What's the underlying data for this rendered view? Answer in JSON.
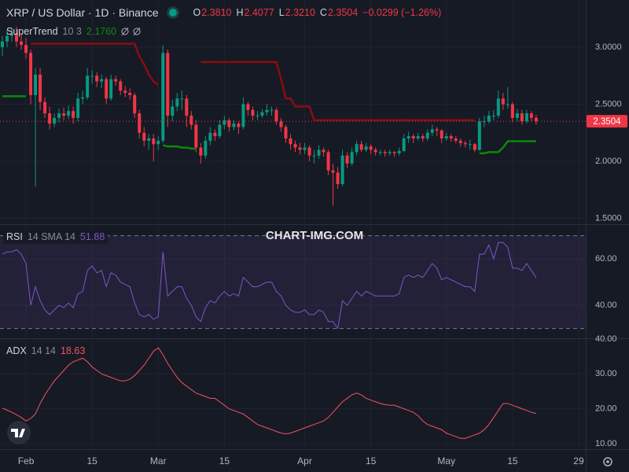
{
  "chart_data": {
    "type": "candlestick",
    "header": {
      "symbol": "XRP / US Dollar · 1D · Binance",
      "ohlc_keys": [
        "O",
        "H",
        "L",
        "C"
      ],
      "ohlc_values": [
        "2.3810",
        "2.4077",
        "2.3210",
        "2.3504"
      ],
      "change": "−0.0299 (−1.26%)"
    },
    "watermark": "CHART-IMG.COM",
    "up_color": "#089981",
    "down_color": "#f23645",
    "xlim": [
      -0.5,
      123.5
    ],
    "xticks": [
      {
        "value": 5,
        "label": "Feb"
      },
      {
        "value": 19,
        "label": "15"
      },
      {
        "value": 33,
        "label": "Mar"
      },
      {
        "value": 47,
        "label": "15"
      },
      {
        "value": 64,
        "label": "Apr"
      },
      {
        "value": 78,
        "label": "15"
      },
      {
        "value": 94,
        "label": "May"
      },
      {
        "value": 108,
        "label": "15"
      },
      {
        "value": 122,
        "label": "29"
      }
    ],
    "ylim": [
      1.448,
      3.414
    ],
    "yticks": [
      {
        "value": 1.5,
        "label": "1.5000"
      },
      {
        "value": 2.0,
        "label": "2.0000"
      },
      {
        "value": 2.5,
        "label": "2.5000"
      },
      {
        "value": 3.0,
        "label": "3.0000"
      }
    ],
    "grid": true,
    "ohlc": [
      [
        3.0,
        3.1,
        2.92,
        3.05
      ],
      [
        3.05,
        3.15,
        3.0,
        3.1
      ],
      [
        3.1,
        3.17,
        3.05,
        3.12
      ],
      [
        3.12,
        3.18,
        3.0,
        3.05
      ],
      [
        3.05,
        3.12,
        2.98,
        3.02
      ],
      [
        3.02,
        3.08,
        2.9,
        2.95
      ],
      [
        2.95,
        2.98,
        2.5,
        2.58
      ],
      [
        2.58,
        2.82,
        1.78,
        2.76
      ],
      [
        2.76,
        2.82,
        2.45,
        2.52
      ],
      [
        2.52,
        2.56,
        2.38,
        2.42
      ],
      [
        2.42,
        2.48,
        2.28,
        2.33
      ],
      [
        2.33,
        2.42,
        2.3,
        2.38
      ],
      [
        2.38,
        2.46,
        2.34,
        2.42
      ],
      [
        2.42,
        2.47,
        2.36,
        2.4
      ],
      [
        2.4,
        2.49,
        2.37,
        2.44
      ],
      [
        2.44,
        2.48,
        2.33,
        2.38
      ],
      [
        2.38,
        2.6,
        2.35,
        2.55
      ],
      [
        2.55,
        2.62,
        2.5,
        2.56
      ],
      [
        2.56,
        2.82,
        2.54,
        2.75
      ],
      [
        2.75,
        2.8,
        2.68,
        2.75
      ],
      [
        2.75,
        2.78,
        2.65,
        2.7
      ],
      [
        2.7,
        2.76,
        2.64,
        2.72
      ],
      [
        2.72,
        2.74,
        2.5,
        2.55
      ],
      [
        2.55,
        2.76,
        2.53,
        2.72
      ],
      [
        2.72,
        2.75,
        2.66,
        2.7
      ],
      [
        2.7,
        2.72,
        2.58,
        2.62
      ],
      [
        2.62,
        2.66,
        2.56,
        2.6
      ],
      [
        2.6,
        2.64,
        2.54,
        2.58
      ],
      [
        2.58,
        2.6,
        2.38,
        2.42
      ],
      [
        2.42,
        2.45,
        2.2,
        2.25
      ],
      [
        2.25,
        2.3,
        2.13,
        2.18
      ],
      [
        2.18,
        2.24,
        2.1,
        2.2
      ],
      [
        2.2,
        2.24,
        2.0,
        2.15
      ],
      [
        2.15,
        2.22,
        2.1,
        2.18
      ],
      [
        2.18,
        3.02,
        2.16,
        2.95
      ],
      [
        2.95,
        2.98,
        2.3,
        2.4
      ],
      [
        2.4,
        2.54,
        2.35,
        2.48
      ],
      [
        2.48,
        2.6,
        2.44,
        2.55
      ],
      [
        2.55,
        2.62,
        2.45,
        2.55
      ],
      [
        2.55,
        2.58,
        2.3,
        2.4
      ],
      [
        2.4,
        2.44,
        2.28,
        2.32
      ],
      [
        2.32,
        2.36,
        2.08,
        2.12
      ],
      [
        2.12,
        2.16,
        1.98,
        2.05
      ],
      [
        2.05,
        2.22,
        2.02,
        2.18
      ],
      [
        2.18,
        2.3,
        2.14,
        2.25
      ],
      [
        2.25,
        2.28,
        2.18,
        2.22
      ],
      [
        2.22,
        2.36,
        2.2,
        2.32
      ],
      [
        2.32,
        2.4,
        2.28,
        2.36
      ],
      [
        2.36,
        2.38,
        2.26,
        2.3
      ],
      [
        2.3,
        2.36,
        2.27,
        2.33
      ],
      [
        2.33,
        2.35,
        2.24,
        2.3
      ],
      [
        2.3,
        2.56,
        2.28,
        2.5
      ],
      [
        2.5,
        2.52,
        2.4,
        2.45
      ],
      [
        2.45,
        2.48,
        2.36,
        2.4
      ],
      [
        2.4,
        2.44,
        2.36,
        2.4
      ],
      [
        2.4,
        2.46,
        2.38,
        2.43
      ],
      [
        2.43,
        2.5,
        2.4,
        2.45
      ],
      [
        2.45,
        2.48,
        2.4,
        2.45
      ],
      [
        2.45,
        2.47,
        2.32,
        2.35
      ],
      [
        2.35,
        2.38,
        2.26,
        2.3
      ],
      [
        2.3,
        2.32,
        2.16,
        2.2
      ],
      [
        2.2,
        2.24,
        2.1,
        2.15
      ],
      [
        2.15,
        2.18,
        2.08,
        2.12
      ],
      [
        2.12,
        2.16,
        2.06,
        2.1
      ],
      [
        2.1,
        2.16,
        2.06,
        2.12
      ],
      [
        2.12,
        2.14,
        2.0,
        2.05
      ],
      [
        2.05,
        2.1,
        1.98,
        2.05
      ],
      [
        2.05,
        2.14,
        2.02,
        2.1
      ],
      [
        2.1,
        2.12,
        2.04,
        2.08
      ],
      [
        2.08,
        2.1,
        1.88,
        1.92
      ],
      [
        1.92,
        1.98,
        1.61,
        1.9
      ],
      [
        1.9,
        1.95,
        1.76,
        1.8
      ],
      [
        1.8,
        2.1,
        1.78,
        2.05
      ],
      [
        2.05,
        2.08,
        1.94,
        1.98
      ],
      [
        1.98,
        2.12,
        1.96,
        2.08
      ],
      [
        2.08,
        2.18,
        2.05,
        2.15
      ],
      [
        2.15,
        2.18,
        2.08,
        2.1
      ],
      [
        2.1,
        2.16,
        2.08,
        2.13
      ],
      [
        2.13,
        2.15,
        2.06,
        2.1
      ],
      [
        2.1,
        2.12,
        2.05,
        2.08
      ],
      [
        2.08,
        2.1,
        2.05,
        2.08
      ],
      [
        2.08,
        2.1,
        2.04,
        2.07
      ],
      [
        2.07,
        2.1,
        2.05,
        2.08
      ],
      [
        2.08,
        2.09,
        2.04,
        2.07
      ],
      [
        2.07,
        2.12,
        2.05,
        2.09
      ],
      [
        2.09,
        2.24,
        2.08,
        2.2
      ],
      [
        2.2,
        2.26,
        2.16,
        2.22
      ],
      [
        2.22,
        2.24,
        2.16,
        2.2
      ],
      [
        2.2,
        2.25,
        2.18,
        2.22
      ],
      [
        2.22,
        2.24,
        2.17,
        2.2
      ],
      [
        2.2,
        2.28,
        2.18,
        2.25
      ],
      [
        2.25,
        2.32,
        2.22,
        2.28
      ],
      [
        2.28,
        2.3,
        2.22,
        2.27
      ],
      [
        2.27,
        2.28,
        2.16,
        2.2
      ],
      [
        2.2,
        2.25,
        2.18,
        2.22
      ],
      [
        2.22,
        2.24,
        2.17,
        2.2
      ],
      [
        2.2,
        2.22,
        2.16,
        2.18
      ],
      [
        2.18,
        2.2,
        2.13,
        2.16
      ],
      [
        2.16,
        2.18,
        2.12,
        2.15
      ],
      [
        2.15,
        2.19,
        2.1,
        2.15
      ],
      [
        2.15,
        2.16,
        2.08,
        2.1
      ],
      [
        2.1,
        2.38,
        2.09,
        2.35
      ],
      [
        2.35,
        2.4,
        2.3,
        2.35
      ],
      [
        2.35,
        2.44,
        2.33,
        2.4
      ],
      [
        2.4,
        2.45,
        2.36,
        2.4
      ],
      [
        2.4,
        2.62,
        2.38,
        2.55
      ],
      [
        2.55,
        2.6,
        2.45,
        2.5
      ],
      [
        2.5,
        2.65,
        2.46,
        2.5
      ],
      [
        2.5,
        2.52,
        2.34,
        2.38
      ],
      [
        2.38,
        2.46,
        2.35,
        2.42
      ],
      [
        2.42,
        2.45,
        2.32,
        2.35
      ],
      [
        2.35,
        2.45,
        2.33,
        2.42
      ],
      [
        2.42,
        2.44,
        2.35,
        2.38
      ],
      [
        2.381,
        2.4077,
        2.321,
        2.3504
      ]
    ],
    "supertrend": {
      "name": "SuperTrend",
      "params": "10 3",
      "value_label": "2.1760",
      "up_color": "#0a8a0a",
      "down_color": "#8b0d0d",
      "values": [
        2.57,
        2.57,
        2.57,
        2.57,
        2.57,
        2.57,
        3.03,
        3.03,
        3.03,
        3.03,
        3.03,
        3.03,
        3.03,
        3.03,
        3.03,
        3.03,
        3.03,
        3.03,
        3.03,
        3.03,
        3.03,
        3.03,
        3.03,
        3.03,
        3.03,
        3.03,
        3.03,
        3.03,
        3.03,
        2.92,
        2.85,
        2.76,
        2.7,
        2.67,
        2.14,
        2.13,
        2.13,
        2.13,
        2.12,
        2.12,
        2.11,
        2.11,
        2.87,
        2.87,
        2.87,
        2.87,
        2.87,
        2.87,
        2.87,
        2.87,
        2.87,
        2.87,
        2.87,
        2.87,
        2.87,
        2.87,
        2.87,
        2.87,
        2.87,
        2.72,
        2.55,
        2.55,
        2.48,
        2.48,
        2.48,
        2.48,
        2.36,
        2.36,
        2.36,
        2.36,
        2.36,
        2.36,
        2.36,
        2.36,
        2.36,
        2.36,
        2.36,
        2.36,
        2.36,
        2.36,
        2.36,
        2.36,
        2.36,
        2.36,
        2.36,
        2.36,
        2.36,
        2.36,
        2.36,
        2.36,
        2.36,
        2.36,
        2.36,
        2.36,
        2.36,
        2.36,
        2.36,
        2.36,
        2.36,
        2.36,
        2.36,
        2.07,
        2.07,
        2.08,
        2.08,
        2.08,
        2.12,
        2.176,
        2.176,
        2.176,
        2.176,
        2.176,
        2.176,
        2.176
      ]
    },
    "rsi": {
      "name": "RSI",
      "params": "14 SMA 14",
      "value_label": "51.88",
      "color": "#7e57c2",
      "ylim": [
        25.8,
        74.6
      ],
      "yticks": [
        {
          "value": 40,
          "label": "40.00"
        },
        {
          "value": 60,
          "label": "60.00"
        }
      ],
      "bands": [
        30,
        70
      ],
      "values": [
        62,
        63,
        63,
        64,
        62,
        58,
        40,
        48,
        42,
        38,
        36,
        38,
        40,
        39,
        41,
        39,
        45,
        46,
        55,
        57,
        54,
        55,
        48,
        54,
        53,
        50,
        49,
        48,
        41,
        36,
        35,
        36,
        34,
        35,
        63,
        44,
        46,
        48,
        48,
        43,
        40,
        35,
        33,
        39,
        42,
        41,
        44,
        46,
        44,
        45,
        44,
        52,
        50,
        48,
        48,
        49,
        50,
        50,
        46,
        44,
        40,
        38,
        37,
        37,
        38,
        36,
        36,
        38,
        37,
        33,
        33,
        30,
        42,
        40,
        43,
        46,
        44,
        46,
        45,
        44,
        44,
        44,
        44,
        44,
        45,
        52,
        53,
        52,
        53,
        52,
        55,
        58,
        56,
        51,
        52,
        51,
        50,
        49,
        48,
        48,
        46,
        62,
        62,
        66,
        60,
        67,
        67,
        65,
        56,
        56,
        55,
        58,
        55,
        51.88
      ]
    },
    "adx": {
      "name": "ADX",
      "params": "14 14",
      "value_label": "18.63",
      "color": "#f7525f",
      "ylim": [
        8.4,
        40
      ],
      "yticks": [
        {
          "value": 10,
          "label": "10.00"
        },
        {
          "value": 20,
          "label": "20.00"
        },
        {
          "value": 30,
          "label": "30.00"
        },
        {
          "value": 40,
          "label": "40.00"
        }
      ],
      "values": [
        20.2,
        19.6,
        19.0,
        18.3,
        17.5,
        16.5,
        17.2,
        18.5,
        21.5,
        24.0,
        26.0,
        28.0,
        29.5,
        31.0,
        32.5,
        33.5,
        34.0,
        34.5,
        33.5,
        32.0,
        31.0,
        30.0,
        29.5,
        29.0,
        28.5,
        28.0,
        28.0,
        28.5,
        29.5,
        31.0,
        32.5,
        34.5,
        36.5,
        37.5,
        35.5,
        33.0,
        31.0,
        29.0,
        27.5,
        26.5,
        25.5,
        24.5,
        24.0,
        23.5,
        23.0,
        23.0,
        22.0,
        21.0,
        20.0,
        19.5,
        19.0,
        18.5,
        17.5,
        16.5,
        15.5,
        15.0,
        14.5,
        14.0,
        13.5,
        13.0,
        12.8,
        13.0,
        13.5,
        14.0,
        14.5,
        15.0,
        15.5,
        16.0,
        16.5,
        17.5,
        19.0,
        20.5,
        22.0,
        23.0,
        24.0,
        24.5,
        24.0,
        23.0,
        22.5,
        22.0,
        21.5,
        21.2,
        21.0,
        21.0,
        20.5,
        20.0,
        19.5,
        19.0,
        18.0,
        16.5,
        15.5,
        15.0,
        14.5,
        14.0,
        13.0,
        12.5,
        12.0,
        11.5,
        11.5,
        12.0,
        12.5,
        13.0,
        14.0,
        15.5,
        17.5,
        19.5,
        21.5,
        21.5,
        21.0,
        20.5,
        20.0,
        19.5,
        19.0,
        18.63
      ]
    }
  }
}
